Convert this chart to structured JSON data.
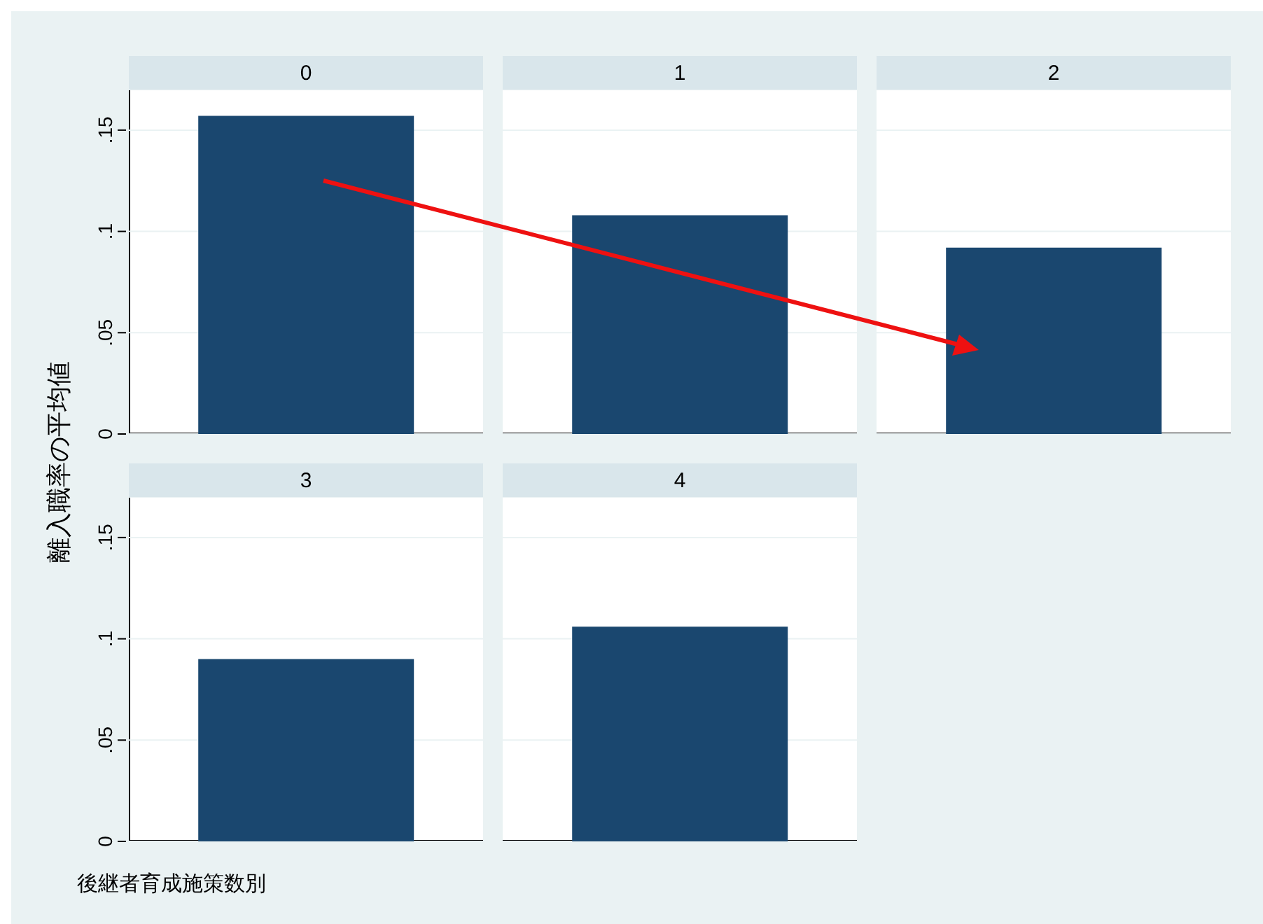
{
  "chart_data": [
    {
      "type": "bar",
      "ylabel": "離入職率の平均値",
      "categories": [
        "0",
        "1",
        "2"
      ],
      "values": [
        0.157,
        0.108,
        0.092
      ],
      "color": "#1a476f",
      "ylim": [
        0,
        0.17
      ],
      "yticks": [
        0,
        {
          "value": 0.05,
          "label": ".05"
        },
        {
          "value": 0.1,
          "label": ".1"
        },
        {
          "value": 0.15,
          "label": ".15"
        }
      ],
      "grid": "y"
    },
    {
      "type": "bar",
      "xlabel": "後継者育成施策数別",
      "categories": [
        "3",
        "4"
      ],
      "values": [
        0.09,
        0.106
      ],
      "color": "#1a476f",
      "ylim": [
        0,
        0.17
      ],
      "yticks": [
        0,
        {
          "value": 0.05,
          "label": ".05"
        },
        {
          "value": 0.1,
          "label": ".1"
        },
        {
          "value": 0.15,
          "label": ".15"
        }
      ],
      "grid": "y"
    }
  ]
}
